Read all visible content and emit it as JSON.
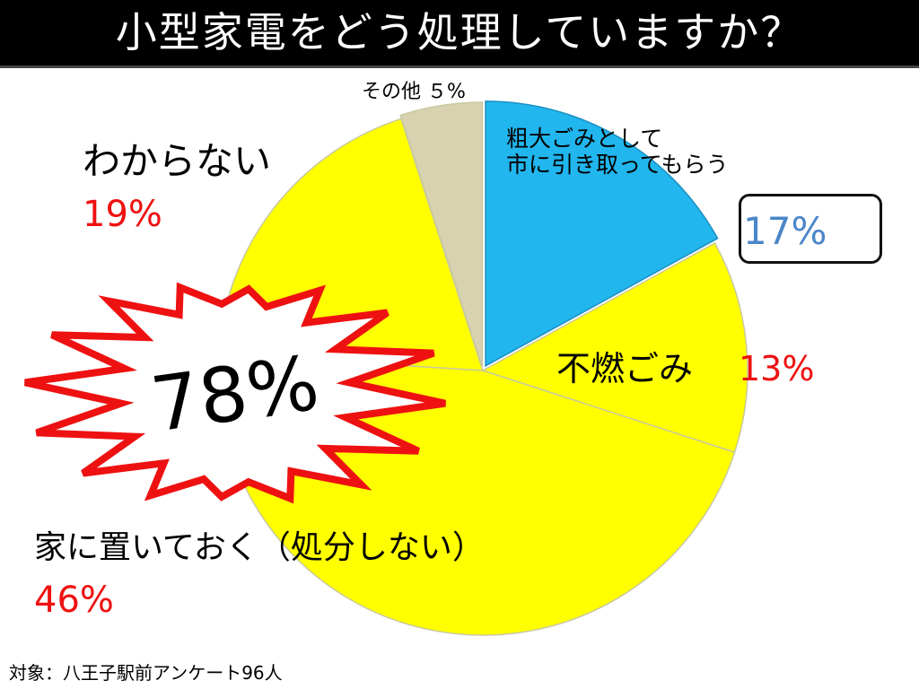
{
  "title": "小型家電をどう処理していますか？",
  "chart_data": {
    "type": "pie",
    "slices": [
      {
        "label": "粗大ごみとして市に引き取ってもらう",
        "label_lines": [
          "粗大ごみとして",
          "市に引き取ってもらう"
        ],
        "value": 17,
        "value_text": "17%",
        "color": "#21b6ee"
      },
      {
        "label": "不燃ごみ",
        "value": 13,
        "value_text": "13%",
        "color": "#ffff00"
      },
      {
        "label": "家に置いておく（処分しない）",
        "value": 46,
        "value_text": "46%",
        "color": "#ffff00"
      },
      {
        "label": "わからない",
        "value": 19,
        "value_text": "19%",
        "color": "#ffff00"
      },
      {
        "label": "その他",
        "value": 5,
        "value_text": "５%",
        "color": "#d8d2b0"
      }
    ],
    "highlight": {
      "text": "78%",
      "color_fill": "#ffffff",
      "color_stroke": "#ee1111"
    }
  },
  "footer": "対象：八王子駅前アンケート96人"
}
